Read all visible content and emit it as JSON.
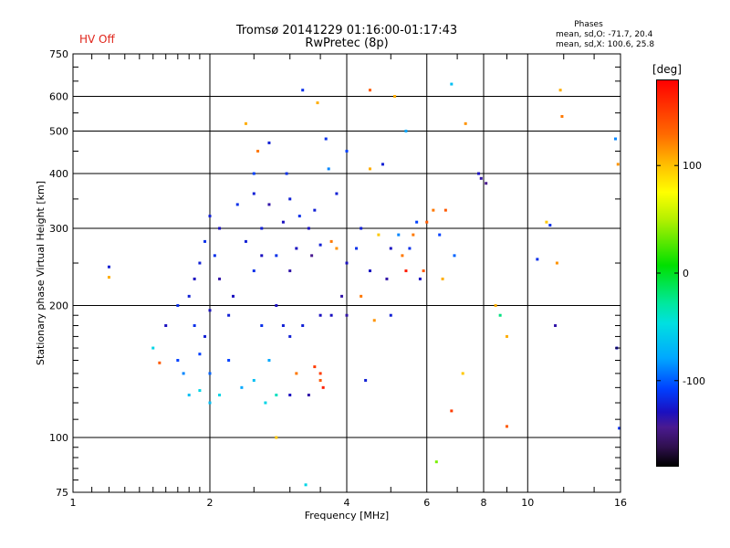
{
  "status_text": "HV Off",
  "chart_data": {
    "type": "scatter",
    "title": "Tromsø 20141229 01:16:00-01:17:43",
    "subtitle": "RwPretec (8p)",
    "xlabel": "Frequency [MHz]",
    "ylabel": "Stationary phase Virtual Height [km]",
    "xscale": "log",
    "yscale": "log",
    "xlim": [
      1,
      16
    ],
    "ylim": [
      75,
      750
    ],
    "x_ticks": [
      1,
      2,
      4,
      6,
      8,
      10,
      16
    ],
    "x_tick_labels": [
      "1",
      "2",
      "4",
      "6",
      "8",
      "10",
      "16"
    ],
    "y_ticks": [
      75,
      100,
      200,
      300,
      400,
      500,
      600,
      750
    ],
    "y_tick_labels": [
      "75",
      "100",
      "200",
      "300",
      "400",
      "500",
      "600",
      "750"
    ],
    "grid": true,
    "phases_panel": {
      "title": "Phases",
      "line1": "mean, sd,O: -71.7, 20.4",
      "line2": "mean, sd,X: 100.6, 25.8"
    },
    "colorbar": {
      "unit": "[deg]",
      "range": [
        -180,
        180
      ],
      "ticks": [
        100,
        0,
        -100
      ],
      "tick_labels": [
        "100",
        "0",
        "-100"
      ]
    },
    "series": [
      {
        "points": [
          [
            1.2,
            245,
            -100
          ],
          [
            1.2,
            232,
            120
          ],
          [
            1.5,
            160,
            -30
          ],
          [
            1.55,
            148,
            150
          ],
          [
            1.6,
            180,
            -110
          ],
          [
            1.7,
            150,
            -80
          ],
          [
            1.7,
            200,
            -90
          ],
          [
            1.75,
            140,
            -60
          ],
          [
            1.8,
            125,
            -40
          ],
          [
            1.8,
            210,
            -100
          ],
          [
            1.85,
            230,
            -110
          ],
          [
            1.85,
            180,
            -90
          ],
          [
            1.9,
            128,
            -30
          ],
          [
            1.9,
            155,
            -80
          ],
          [
            1.9,
            250,
            -100
          ],
          [
            1.95,
            170,
            -100
          ],
          [
            1.95,
            280,
            -90
          ],
          [
            2.0,
            120,
            -40
          ],
          [
            2.0,
            140,
            -70
          ],
          [
            2.0,
            195,
            -110
          ],
          [
            2.0,
            320,
            -100
          ],
          [
            2.05,
            260,
            -90
          ],
          [
            2.1,
            125,
            -30
          ],
          [
            2.1,
            230,
            -120
          ],
          [
            2.1,
            300,
            -110
          ],
          [
            2.2,
            150,
            -80
          ],
          [
            2.2,
            190,
            -100
          ],
          [
            2.25,
            210,
            -110
          ],
          [
            2.3,
            340,
            -90
          ],
          [
            2.35,
            130,
            -50
          ],
          [
            2.4,
            280,
            -100
          ],
          [
            2.4,
            520,
            120
          ],
          [
            2.5,
            135,
            -40
          ],
          [
            2.5,
            240,
            -90
          ],
          [
            2.5,
            360,
            -100
          ],
          [
            2.5,
            400,
            -80
          ],
          [
            2.55,
            450,
            140
          ],
          [
            2.6,
            260,
            -110
          ],
          [
            2.6,
            300,
            -100
          ],
          [
            2.6,
            180,
            -90
          ],
          [
            2.65,
            120,
            -30
          ],
          [
            2.7,
            150,
            -50
          ],
          [
            2.7,
            470,
            -100
          ],
          [
            2.7,
            340,
            -120
          ],
          [
            2.8,
            100,
            110
          ],
          [
            2.8,
            125,
            -20
          ],
          [
            2.8,
            200,
            -110
          ],
          [
            2.8,
            260,
            -90
          ],
          [
            2.9,
            180,
            -100
          ],
          [
            2.9,
            310,
            -110
          ],
          [
            2.95,
            400,
            -90
          ],
          [
            3.0,
            125,
            -110
          ],
          [
            3.0,
            170,
            -100
          ],
          [
            3.0,
            240,
            -120
          ],
          [
            3.0,
            350,
            -100
          ],
          [
            3.1,
            140,
            140
          ],
          [
            3.1,
            270,
            -110
          ],
          [
            3.15,
            320,
            -90
          ],
          [
            3.2,
            620,
            -90
          ],
          [
            3.2,
            180,
            -100
          ],
          [
            3.25,
            78,
            -30
          ],
          [
            3.3,
            125,
            -120
          ],
          [
            3.3,
            300,
            -110
          ],
          [
            3.35,
            260,
            -130
          ],
          [
            3.4,
            145,
            160
          ],
          [
            3.4,
            330,
            -100
          ],
          [
            3.45,
            580,
            120
          ],
          [
            3.5,
            135,
            150
          ],
          [
            3.5,
            140,
            160
          ],
          [
            3.5,
            190,
            -110
          ],
          [
            3.5,
            275,
            -100
          ],
          [
            3.55,
            130,
            170
          ],
          [
            3.6,
            480,
            -90
          ],
          [
            3.65,
            410,
            -60
          ],
          [
            3.7,
            280,
            140
          ],
          [
            3.7,
            190,
            -110
          ],
          [
            3.8,
            270,
            130
          ],
          [
            3.8,
            360,
            -100
          ],
          [
            3.9,
            210,
            -120
          ],
          [
            4.0,
            250,
            -110
          ],
          [
            4.0,
            190,
            -120
          ],
          [
            4.0,
            450,
            -80
          ],
          [
            4.2,
            270,
            -90
          ],
          [
            4.3,
            210,
            140
          ],
          [
            4.3,
            300,
            -100
          ],
          [
            4.4,
            135,
            -100
          ],
          [
            4.5,
            410,
            120
          ],
          [
            4.5,
            240,
            -110
          ],
          [
            4.5,
            620,
            150
          ],
          [
            4.6,
            185,
            130
          ],
          [
            4.7,
            290,
            110
          ],
          [
            4.8,
            420,
            -100
          ],
          [
            4.9,
            230,
            -120
          ],
          [
            5.0,
            270,
            -110
          ],
          [
            5.0,
            190,
            -100
          ],
          [
            5.1,
            600,
            120
          ],
          [
            5.2,
            290,
            -60
          ],
          [
            5.3,
            260,
            140
          ],
          [
            5.4,
            240,
            170
          ],
          [
            5.4,
            500,
            -50
          ],
          [
            5.5,
            270,
            -90
          ],
          [
            5.6,
            290,
            140
          ],
          [
            5.7,
            310,
            -80
          ],
          [
            5.8,
            230,
            -110
          ],
          [
            5.9,
            240,
            150
          ],
          [
            6.0,
            310,
            150
          ],
          [
            6.2,
            330,
            140
          ],
          [
            6.3,
            88,
            40
          ],
          [
            6.4,
            290,
            -80
          ],
          [
            6.5,
            230,
            120
          ],
          [
            6.6,
            330,
            150
          ],
          [
            6.8,
            640,
            -40
          ],
          [
            6.8,
            115,
            160
          ],
          [
            6.9,
            260,
            -70
          ],
          [
            7.2,
            140,
            110
          ],
          [
            7.3,
            520,
            130
          ],
          [
            7.8,
            400,
            -110
          ],
          [
            7.9,
            390,
            -120
          ],
          [
            8.1,
            380,
            -130
          ],
          [
            8.5,
            200,
            120
          ],
          [
            8.7,
            190,
            -10
          ],
          [
            9.0,
            106,
            150
          ],
          [
            9.0,
            170,
            120
          ],
          [
            10.5,
            255,
            -90
          ],
          [
            11.0,
            310,
            110
          ],
          [
            11.2,
            305,
            -90
          ],
          [
            11.5,
            180,
            -120
          ],
          [
            11.6,
            250,
            130
          ],
          [
            11.8,
            620,
            120
          ],
          [
            11.9,
            540,
            140
          ],
          [
            15.6,
            480,
            -60
          ],
          [
            15.7,
            160,
            -110
          ],
          [
            15.8,
            420,
            130
          ],
          [
            15.9,
            105,
            -90
          ]
        ]
      }
    ]
  }
}
